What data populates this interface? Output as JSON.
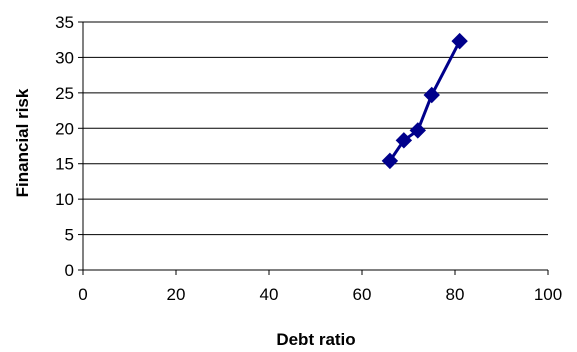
{
  "chart_data": {
    "type": "line",
    "xlabel": "Debt ratio",
    "ylabel": "Financial risk",
    "xlim": [
      0,
      100
    ],
    "ylim": [
      0,
      35
    ],
    "x_ticks": [
      0,
      20,
      40,
      60,
      80,
      100
    ],
    "y_ticks": [
      0,
      5,
      10,
      15,
      20,
      25,
      30,
      35
    ],
    "grid": "horizontal",
    "legend": "none",
    "series": [
      {
        "color": "#00008B",
        "marker": "diamond",
        "points": [
          {
            "x": 66,
            "y": 15.4
          },
          {
            "x": 69,
            "y": 18.3
          },
          {
            "x": 72,
            "y": 19.7
          },
          {
            "x": 75,
            "y": 24.7
          },
          {
            "x": 81,
            "y": 32.3
          }
        ]
      }
    ]
  }
}
